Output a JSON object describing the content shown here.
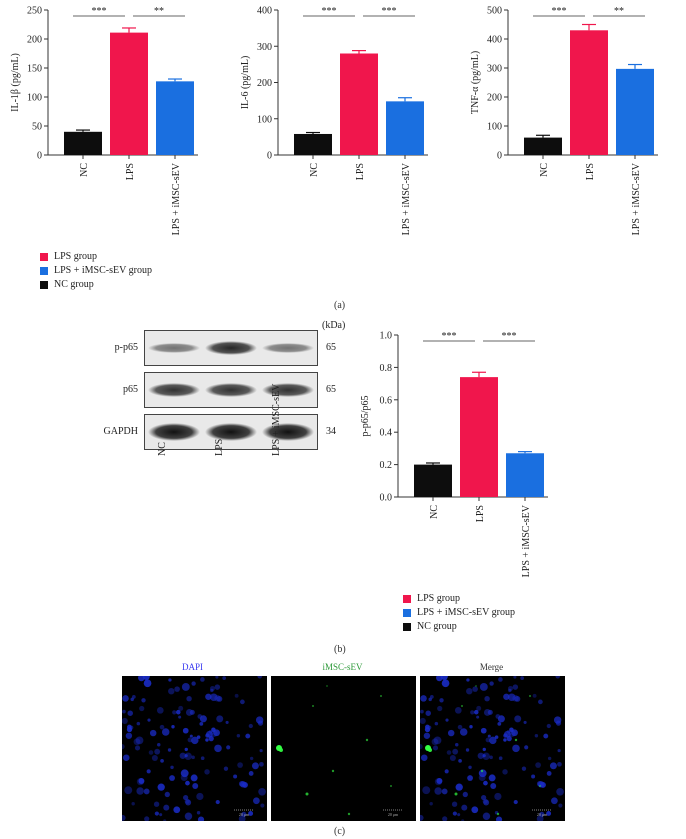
{
  "colors": {
    "lps": "#f0164c",
    "ev": "#1a6fe0",
    "nc": "#0d0d0d"
  },
  "panel_a": {
    "label": "(a)",
    "legend": [
      "LPS group",
      "LPS + iMSC-sEV group",
      "NC group"
    ]
  },
  "panel_b": {
    "label": "(b)",
    "kda_label": "(kDa)",
    "blot_rows": [
      {
        "name": "p-p65",
        "kda": "65"
      },
      {
        "name": "p65",
        "kda": "65"
      },
      {
        "name": "GAPDH",
        "kda": "34"
      }
    ],
    "blot_lanes": [
      "NC",
      "LPS",
      "LPS + iMSC-sEV"
    ],
    "legend": [
      "LPS group",
      "LPS + iMSC-sEV group",
      "NC group"
    ]
  },
  "panel_c": {
    "label": "(c)",
    "images": [
      {
        "title": "DAPI",
        "title_color": "#3a3af0",
        "scalebar": "20 μm"
      },
      {
        "title": "iMSC-sEV",
        "title_color": "#2e9a3a",
        "scalebar": "20 μm"
      },
      {
        "title": "Merge",
        "title_color": "#333333",
        "scalebar": "20 μm"
      }
    ]
  },
  "chart_data": [
    {
      "type": "bar",
      "ylabel": "IL-1β (pg/mL)",
      "categories": [
        "NC",
        "LPS",
        "LPS + iMSC-sEV"
      ],
      "values": [
        40,
        211,
        127
      ],
      "errors": [
        3,
        8,
        4
      ],
      "ylim": [
        0,
        250
      ],
      "yticks": [
        "0",
        "50",
        "100",
        "150",
        "200",
        "250"
      ],
      "significance": [
        {
          "from": 0,
          "to": 1,
          "label": "***"
        },
        {
          "from": 1,
          "to": 2,
          "label": "**"
        }
      ]
    },
    {
      "type": "bar",
      "ylabel": "IL-6 (pg/mL)",
      "categories": [
        "NC",
        "LPS",
        "LPS + iMSC-sEV"
      ],
      "values": [
        58,
        280,
        148
      ],
      "errors": [
        4,
        8,
        10
      ],
      "ylim": [
        0,
        400
      ],
      "yticks": [
        "0",
        "100",
        "200",
        "300",
        "400"
      ],
      "significance": [
        {
          "from": 0,
          "to": 1,
          "label": "***"
        },
        {
          "from": 1,
          "to": 2,
          "label": "***"
        }
      ]
    },
    {
      "type": "bar",
      "ylabel": "TNF-α (pg/mL)",
      "categories": [
        "NC",
        "LPS",
        "LPS + iMSC-sEV"
      ],
      "values": [
        60,
        430,
        297
      ],
      "errors": [
        8,
        20,
        15
      ],
      "ylim": [
        0,
        500
      ],
      "yticks": [
        "0",
        "100",
        "200",
        "300",
        "400",
        "500"
      ],
      "significance": [
        {
          "from": 0,
          "to": 1,
          "label": "***"
        },
        {
          "from": 1,
          "to": 2,
          "label": "**"
        }
      ]
    },
    {
      "type": "bar",
      "ylabel": "p-p65/p65",
      "categories": [
        "NC",
        "LPS",
        "LPS + iMSC-sEV"
      ],
      "values": [
        0.2,
        0.74,
        0.27
      ],
      "errors": [
        0.01,
        0.03,
        0.01
      ],
      "ylim": [
        0,
        1.0
      ],
      "yticks": [
        "0.0",
        "0.2",
        "0.4",
        "0.6",
        "0.8",
        "1.0"
      ],
      "significance": [
        {
          "from": 0,
          "to": 1,
          "label": "***"
        },
        {
          "from": 1,
          "to": 2,
          "label": "***"
        }
      ]
    }
  ]
}
